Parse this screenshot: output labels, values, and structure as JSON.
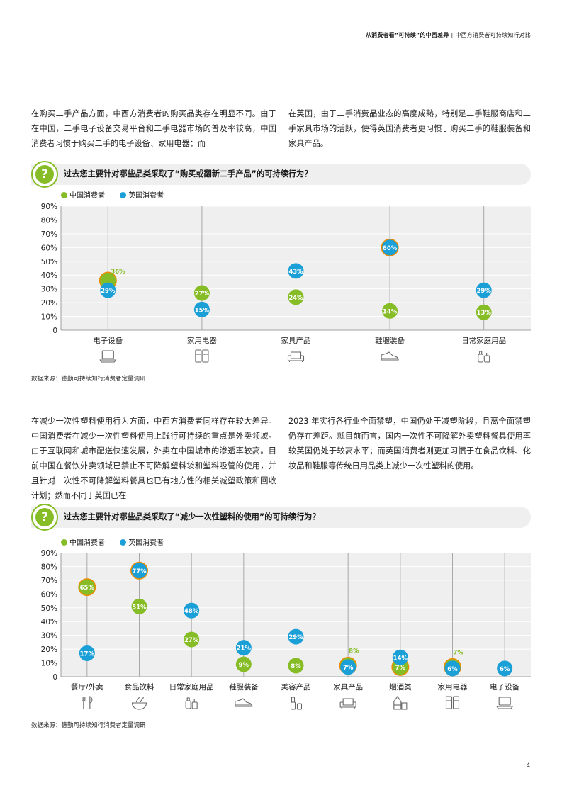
{
  "header": {
    "title": "从消费者看“可持续”的中西差异",
    "separator": "|",
    "subtitle": "中西方消费者可持续知行对比"
  },
  "section1": {
    "para_left": "在购买二手产品方面，中西方消费者的购买品类存在明显不同。由于在中国，二手电子设备交易平台和二手电器市场的普及率较高，中国消费者习惯于购买二手的电子设备、家用电器；而",
    "para_right": "在英国，由于二手消费品业态的高度成熟，特别是二手鞋服商店和二手家具市场的活跃，使得英国消费者更习惯于购买二手的鞋服装备和家具产品。",
    "question_mark": "?",
    "question": "过去您主要针对哪些品类采取了“购买或翻新二手产品”的可持续行为？",
    "source": "数据来源：德勤可持续知行消费者定量调研"
  },
  "section2": {
    "para_left": "在减少一次性塑料使用行为方面，中西方消费者同样存在较大差异。中国消费者在减少一次性塑料使用上践行可持续的重点是外卖领域。由于互联网和城市配送快速发展，外卖在中国城市的渗透率较高。目前中国在餐饮外卖领域已禁止不可降解塑料袋和塑料吸管的使用，并且针对一次性不可降解塑料餐具也已有地方性的相关减塑政策和回收计划；然而不同于英国已在",
    "para_right": "2023 年实行各行业全面禁塑，中国仍处于减塑阶段，且离全面禁塑仍存在差距。就目前而言，国内一次性不可降解外卖塑料餐具使用率较英国仍处于较高水平；而英国消费者则更加习惯于在食品饮料、化妆品和鞋服等传统日用品类上减少一次性塑料的使用。",
    "question_mark": "?",
    "question": "过去您主要针对哪些品类采取了“减少一次性塑料的使用”的可持续行为？",
    "source": "数据来源：德勤可持续知行消费者定量调研"
  },
  "page_number": "4",
  "colors": {
    "china": "#86bc25",
    "uk": "#1a9fd6",
    "plot_bg": "#efefef",
    "stem": "#a8a8a8",
    "ring": "#ed8b00"
  },
  "chart_data": [
    {
      "type": "scatter",
      "title": "过去您主要针对哪些品类采取了“购买或翻新二手产品”的可持续行为？",
      "categories": [
        "电子设备",
        "家用电器",
        "家具产品",
        "鞋服装备",
        "日常家庭用品"
      ],
      "category_icons": [
        "laptop-icon",
        "appliance-icon",
        "sofa-icon",
        "sneaker-icon",
        "bottle-icon"
      ],
      "series": [
        {
          "name": "中国消费者",
          "values": [
            36,
            27,
            24,
            14,
            13
          ]
        },
        {
          "name": "英国消费者",
          "values": [
            29,
            15,
            43,
            60,
            29
          ]
        }
      ],
      "ylim": [
        0,
        90
      ],
      "yticks": [
        "0",
        "10%",
        "20%",
        "30%",
        "40%",
        "50%",
        "60%",
        "70%",
        "80%",
        "90%"
      ],
      "legend": "top-left",
      "grid": true
    },
    {
      "type": "scatter",
      "title": "过去您主要针对哪些品类采取了“减少一次性塑料的使用”的可持续行为？",
      "categories": [
        "餐厅/外卖",
        "食品饮料",
        "日常家庭用品",
        "鞋服装备",
        "美容产品",
        "家具产品",
        "烟酒类",
        "家用电器",
        "电子设备"
      ],
      "category_icons": [
        "utensils-icon",
        "bowl-icon",
        "bottle-icon",
        "sneaker-icon",
        "cosmetics-icon",
        "sofa-icon",
        "liquor-icon",
        "appliance-icon",
        "laptop-icon"
      ],
      "series": [
        {
          "name": "中国消费者",
          "values": [
            65,
            51,
            27,
            9,
            8,
            8,
            7,
            7,
            null
          ]
        },
        {
          "name": "英国消费者",
          "values": [
            17,
            77,
            48,
            21,
            29,
            7,
            14,
            6,
            6
          ]
        }
      ],
      "ylim": [
        0,
        90
      ],
      "yticks": [
        "0",
        "10%",
        "20%",
        "30%",
        "40%",
        "50%",
        "60%",
        "70%",
        "80%",
        "90%"
      ],
      "legend": "top-left",
      "grid": true
    }
  ]
}
